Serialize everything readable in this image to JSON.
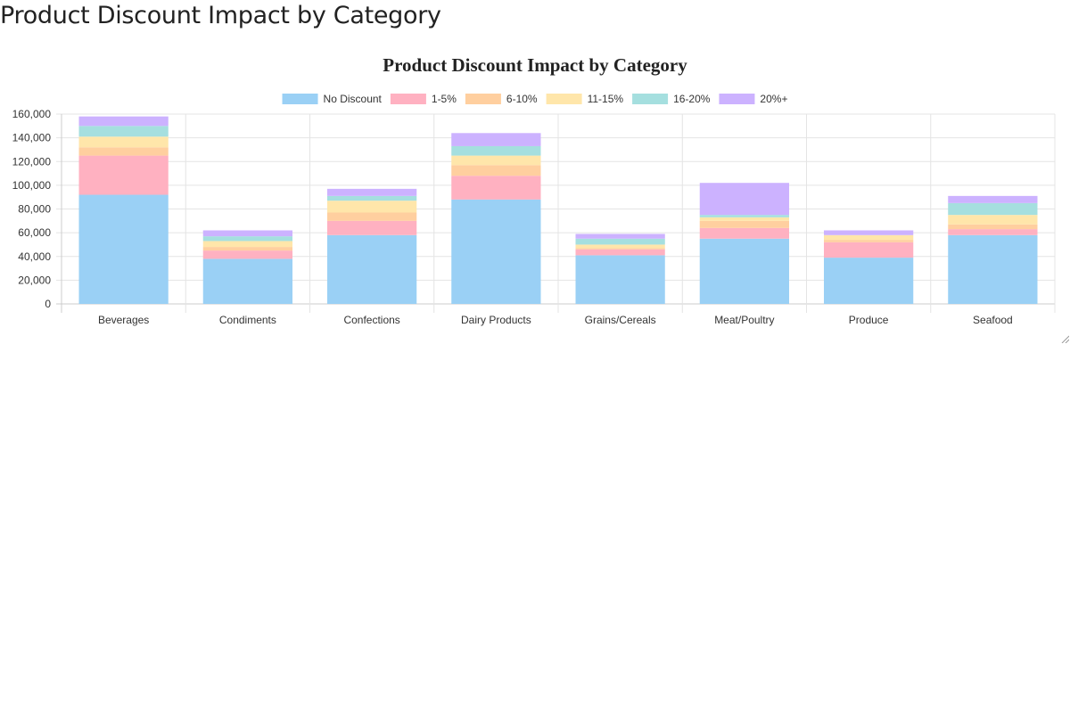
{
  "page": {
    "heading": "Product Discount Impact by Category"
  },
  "colors": {
    "grid": "#e4e4e4",
    "axis": "#cccccc"
  },
  "chart_data": {
    "type": "bar",
    "stacked": true,
    "title": "Product Discount Impact by Category",
    "xlabel": "",
    "ylabel": "",
    "ylim": [
      0,
      160000
    ],
    "y_ticks": [
      0,
      20000,
      40000,
      60000,
      80000,
      100000,
      120000,
      140000,
      160000
    ],
    "y_tick_labels": [
      "0",
      "20,000",
      "40,000",
      "60,000",
      "80,000",
      "100,000",
      "120,000",
      "140,000",
      "160,000"
    ],
    "grid": true,
    "legend_position": "top",
    "categories": [
      "Beverages",
      "Condiments",
      "Confections",
      "Dairy Products",
      "Grains/Cereals",
      "Meat/Poultry",
      "Produce",
      "Seafood"
    ],
    "series": [
      {
        "name": "No Discount",
        "color": "#9ad0f5",
        "values": [
          92000,
          38000,
          58000,
          88000,
          41000,
          55000,
          39000,
          58000
        ]
      },
      {
        "name": "1-5%",
        "color": "#ffb1c1",
        "values": [
          33000,
          7000,
          12000,
          20000,
          5000,
          9000,
          13000,
          5000
        ]
      },
      {
        "name": "6-10%",
        "color": "#ffcf9f",
        "values": [
          7000,
          3000,
          7000,
          9000,
          1000,
          6000,
          2000,
          4000
        ]
      },
      {
        "name": "11-15%",
        "color": "#ffe6aa",
        "values": [
          9000,
          5000,
          10000,
          8000,
          3000,
          3000,
          4000,
          8000
        ]
      },
      {
        "name": "16-20%",
        "color": "#a5dfdf",
        "values": [
          9000,
          4000,
          4000,
          8000,
          5000,
          2000,
          0,
          10000
        ]
      },
      {
        "name": "20%+",
        "color": "#ccb2ff",
        "values": [
          8000,
          5000,
          6000,
          11000,
          4000,
          27000,
          4000,
          6000
        ]
      }
    ]
  }
}
